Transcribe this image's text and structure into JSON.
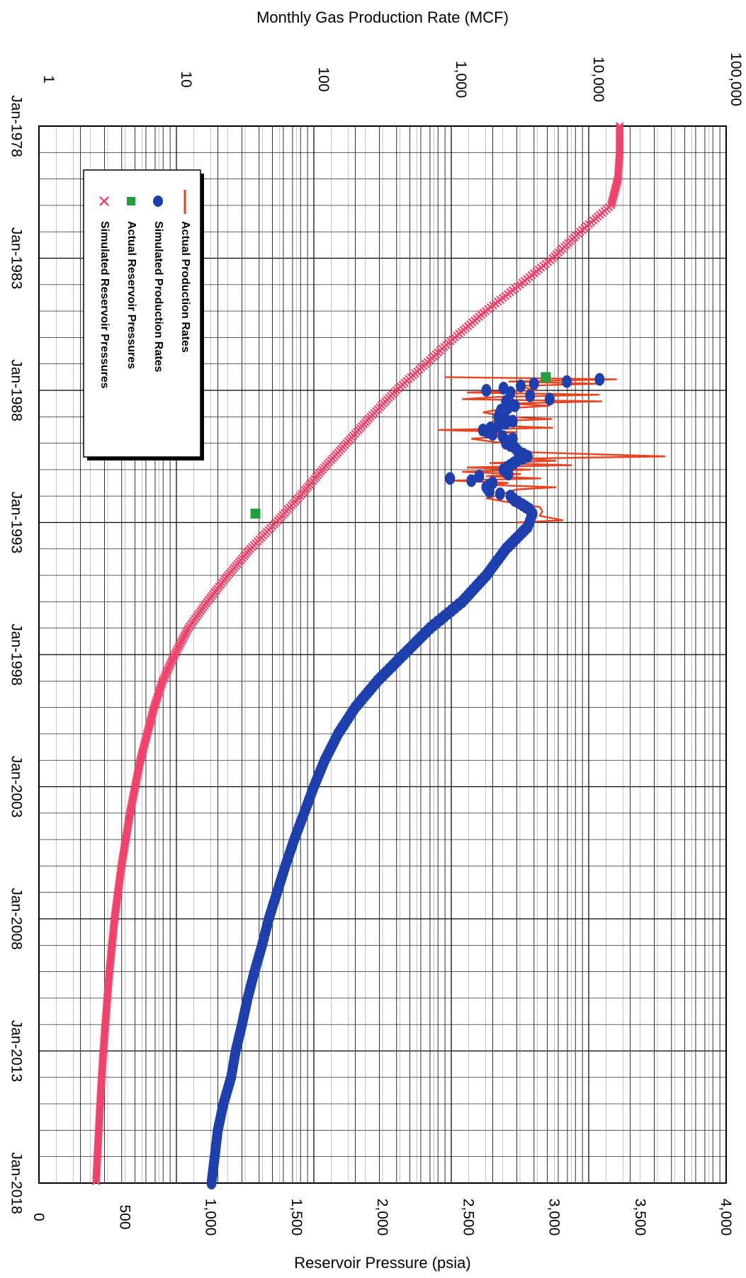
{
  "chart_data": {
    "type": "scatter",
    "orientation": "rotated-90-clockwise",
    "top_axis": {
      "label": "Monthly Gas Production Rate (MCF)",
      "scale": "log",
      "range": [
        1,
        100000
      ],
      "tick_labels": [
        "1",
        "10",
        "100",
        "1,000",
        "10,000",
        "100,000"
      ]
    },
    "bottom_axis": {
      "label": "Reservoir Pressure (psia)",
      "scale": "linear",
      "range": [
        0,
        4000
      ],
      "tick_labels": [
        "0",
        "500",
        "1,000",
        "1,500",
        "2,000",
        "2,500",
        "3,000",
        "3,500",
        "4,000"
      ]
    },
    "time_axis": {
      "range": [
        "1978-01",
        "2018-01"
      ],
      "tick_labels": [
        "Jan-1978",
        "Jan-1983",
        "Jan-1988",
        "Jan-1993",
        "Jan-1998",
        "Jan-2003",
        "Jan-2008",
        "Jan-2013",
        "Jan-2018"
      ]
    },
    "grid": true,
    "legend": {
      "placement": "left-top",
      "entries": [
        {
          "label": "Actual Production Rates",
          "marker": "line",
          "color": "#e8421f"
        },
        {
          "label": "Simulated Production Rates",
          "marker": "circle",
          "color": "#1e3fae"
        },
        {
          "label": "Actual Reservoir Pressures",
          "marker": "square",
          "color": "#1ea03c"
        },
        {
          "label": "Simulated Reservoir Pressures",
          "marker": "x",
          "color": "#f2426a"
        }
      ]
    },
    "series": [
      {
        "name": "Actual Production Rates",
        "axis": "rate",
        "points": [
          [
            "1987-07",
            900
          ],
          [
            "1987-08",
            16000
          ],
          [
            "1987-09",
            2600
          ],
          [
            "1987-10",
            12000
          ],
          [
            "1987-11",
            3000
          ],
          [
            "1988-01",
            4200
          ],
          [
            "1988-02",
            1300
          ],
          [
            "1988-03",
            12000
          ],
          [
            "1988-04",
            2200
          ],
          [
            "1988-05",
            1200
          ],
          [
            "1988-06",
            12500
          ],
          [
            "1988-07",
            2600
          ],
          [
            "1988-08",
            5200
          ],
          [
            "1988-09",
            2800
          ],
          [
            "1988-10",
            2100
          ],
          [
            "1988-11",
            1700
          ],
          [
            "1989-01",
            2500
          ],
          [
            "1989-02",
            5400
          ],
          [
            "1989-03",
            2000
          ],
          [
            "1989-04",
            2600
          ],
          [
            "1989-05",
            2000
          ],
          [
            "1989-06",
            5500
          ],
          [
            "1989-07",
            800
          ],
          [
            "1989-08",
            3000
          ],
          [
            "1989-09",
            1600
          ],
          [
            "1989-10",
            2200
          ],
          [
            "1989-11",
            1400
          ],
          [
            "1990-01",
            2400
          ],
          [
            "1990-03",
            2600
          ],
          [
            "1990-05",
            3300
          ],
          [
            "1990-07",
            36000
          ],
          [
            "1990-08",
            3200
          ],
          [
            "1990-09",
            5800
          ],
          [
            "1990-10",
            1900
          ],
          [
            "1990-11",
            7500
          ],
          [
            "1990-12",
            1300
          ],
          [
            "1991-01",
            3800
          ],
          [
            "1991-02",
            1200
          ],
          [
            "1991-03",
            3200
          ],
          [
            "1991-04",
            1800
          ],
          [
            "1991-05",
            4500
          ],
          [
            "1991-06",
            1000
          ],
          [
            "1991-07",
            2600
          ],
          [
            "1991-08",
            2000
          ],
          [
            "1991-09",
            5800
          ],
          [
            "1991-10",
            3000
          ],
          [
            "1991-11",
            2600
          ],
          [
            "1991-12",
            2400
          ],
          [
            "1992-02",
            1800
          ],
          [
            "1992-04",
            2700
          ],
          [
            "1992-06",
            4400
          ],
          [
            "1992-08",
            4600
          ],
          [
            "1992-10",
            4400
          ],
          [
            "1992-12",
            6500
          ],
          [
            "1993-01",
            3000
          ]
        ]
      },
      {
        "name": "Simulated Production Rates",
        "axis": "rate",
        "points": [
          [
            "1987-08",
            12000
          ],
          [
            "1987-10",
            4000
          ],
          [
            "1987-11",
            3200
          ],
          [
            "1988-01",
            1800
          ],
          [
            "1988-02",
            2700
          ],
          [
            "1988-05",
            5200
          ],
          [
            "1988-06",
            2500
          ],
          [
            "1988-08",
            2900
          ],
          [
            "1988-10",
            2300
          ],
          [
            "1989-01",
            2200
          ],
          [
            "1989-03",
            2800
          ],
          [
            "1989-05",
            2200
          ],
          [
            "1989-07",
            1700
          ],
          [
            "1989-09",
            2000
          ],
          [
            "1989-11",
            2800
          ],
          [
            "1990-01",
            2500
          ],
          [
            "1990-03",
            2900
          ],
          [
            "1990-05",
            3100
          ],
          [
            "1990-07",
            3600
          ],
          [
            "1990-09",
            3000
          ],
          [
            "1990-11",
            2700
          ],
          [
            "1991-01",
            2400
          ],
          [
            "1991-03",
            2600
          ],
          [
            "1991-05",
            980
          ],
          [
            "1991-07",
            2000
          ],
          [
            "1991-09",
            1800
          ],
          [
            "1991-11",
            1900
          ],
          [
            "1992-01",
            2700
          ],
          [
            "1992-03",
            2900
          ],
          [
            "1992-05",
            3300
          ],
          [
            "1992-07",
            3700
          ],
          [
            "1992-09",
            3900
          ],
          [
            "1993-03",
            3600
          ],
          [
            "1994-01",
            2500
          ],
          [
            "1995-01",
            1800
          ],
          [
            "1996-01",
            1200
          ],
          [
            "1997-01",
            700
          ],
          [
            "1998-01",
            450
          ],
          [
            "1999-01",
            290
          ],
          [
            "2000-01",
            200
          ],
          [
            "2001-01",
            150
          ],
          [
            "2002-01",
            120
          ],
          [
            "2003-01",
            100
          ],
          [
            "2004-01",
            85
          ],
          [
            "2005-01",
            72
          ],
          [
            "2006-01",
            62
          ],
          [
            "2007-01",
            54
          ],
          [
            "2008-01",
            47
          ],
          [
            "2009-01",
            42
          ],
          [
            "2010-01",
            37
          ],
          [
            "2011-01",
            33
          ],
          [
            "2012-01",
            30
          ],
          [
            "2013-01",
            27
          ],
          [
            "2014-01",
            25
          ],
          [
            "2015-01",
            22
          ],
          [
            "2016-01",
            20
          ],
          [
            "2017-01",
            19
          ],
          [
            "2018-01",
            18
          ]
        ]
      },
      {
        "name": "Actual Reservoir Pressures",
        "axis": "pressure",
        "points": [
          [
            "1987-07",
            2950
          ],
          [
            "1992-09",
            1260
          ]
        ]
      },
      {
        "name": "Simulated Reservoir Pressures",
        "axis": "pressure",
        "points": [
          [
            "1978-01",
            3380
          ],
          [
            "1979-01",
            3380
          ],
          [
            "1980-01",
            3370
          ],
          [
            "1981-01",
            3330
          ],
          [
            "1982-01",
            3150
          ],
          [
            "1983-01",
            2990
          ],
          [
            "1984-01",
            2800
          ],
          [
            "1985-01",
            2600
          ],
          [
            "1986-01",
            2420
          ],
          [
            "1987-01",
            2250
          ],
          [
            "1988-01",
            2080
          ],
          [
            "1989-01",
            1930
          ],
          [
            "1990-01",
            1790
          ],
          [
            "1991-01",
            1650
          ],
          [
            "1992-01",
            1520
          ],
          [
            "1993-01",
            1380
          ],
          [
            "1994-01",
            1230
          ],
          [
            "1995-01",
            1100
          ],
          [
            "1996-01",
            980
          ],
          [
            "1997-01",
            870
          ],
          [
            "1998-01",
            790
          ],
          [
            "1999-01",
            720
          ],
          [
            "2000-01",
            670
          ],
          [
            "2001-01",
            630
          ],
          [
            "2002-01",
            590
          ],
          [
            "2003-01",
            560
          ],
          [
            "2004-01",
            530
          ],
          [
            "2005-01",
            505
          ],
          [
            "2006-01",
            480
          ],
          [
            "2007-01",
            460
          ],
          [
            "2008-01",
            440
          ],
          [
            "2009-01",
            425
          ],
          [
            "2010-01",
            410
          ],
          [
            "2011-01",
            398
          ],
          [
            "2012-01",
            386
          ],
          [
            "2013-01",
            375
          ],
          [
            "2014-01",
            365
          ],
          [
            "2015-01",
            356
          ],
          [
            "2016-01",
            348
          ],
          [
            "2017-01",
            340
          ],
          [
            "2018-01",
            332
          ]
        ]
      }
    ]
  }
}
